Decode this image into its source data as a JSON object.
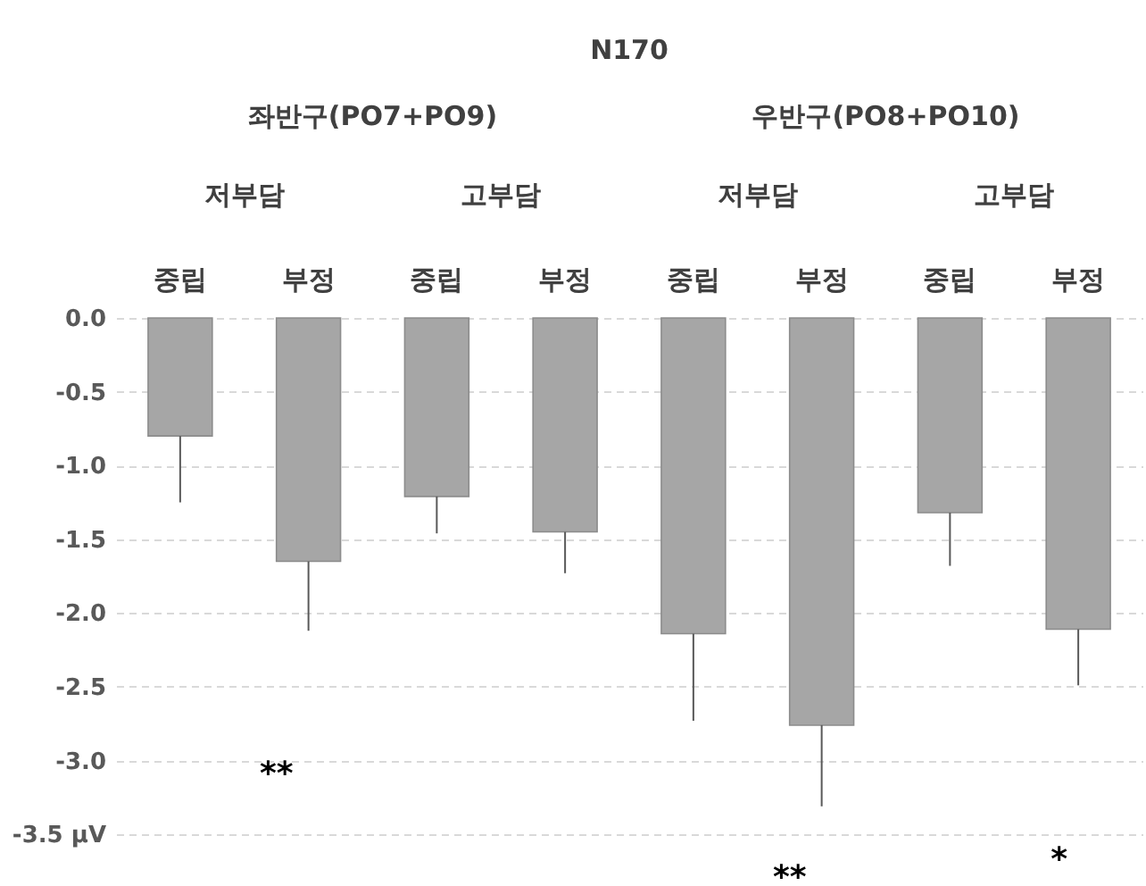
{
  "chart_data": {
    "type": "bar",
    "title": "N170",
    "categories": [
      "중립",
      "부정",
      "중립",
      "부정",
      "중립",
      "부정",
      "중립",
      "부정"
    ],
    "values": [
      -0.8,
      -1.65,
      -1.21,
      -1.45,
      -2.14,
      -2.76,
      -1.32,
      -2.11
    ],
    "errors": [
      [
        -1.25,
        -0.8
      ],
      [
        -2.12,
        -1.65
      ],
      [
        -1.46,
        -1.21
      ],
      [
        -1.73,
        -1.45
      ],
      [
        -2.73,
        -2.14
      ],
      [
        -3.31,
        -2.76
      ],
      [
        -1.68,
        -1.32
      ],
      [
        -2.49,
        -2.11
      ]
    ],
    "color": "#a6a6a6",
    "ylim": [
      -3.85,
      0
    ],
    "yticks": [
      {
        "value": 0,
        "label": "0.0"
      },
      {
        "value": -0.5,
        "label": "-0.5"
      },
      {
        "value": -1,
        "label": "-1.0"
      },
      {
        "value": -1.5,
        "label": "-1.5"
      },
      {
        "value": -2,
        "label": "-2.0"
      },
      {
        "value": -2.5,
        "label": "-2.5"
      },
      {
        "value": -3,
        "label": "-3.0"
      },
      {
        "value": -3.5,
        "label": "-3.5 μV"
      }
    ],
    "grid": "y",
    "annotations": [
      "좌반구(PO7+PO9)",
      "우반구(PO8+PO10)",
      "저부담",
      "고부담",
      "저부담",
      "고부담",
      "**",
      "**",
      "*"
    ]
  }
}
